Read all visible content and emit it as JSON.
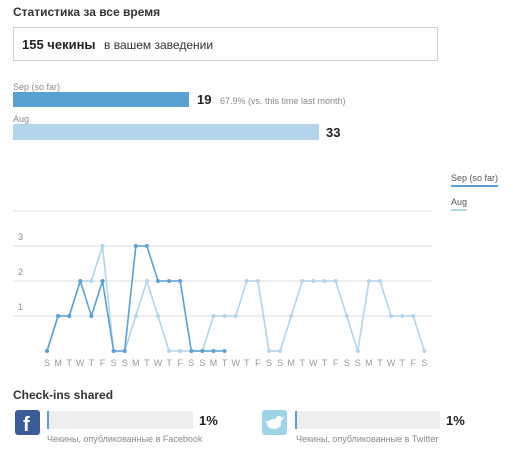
{
  "header": {
    "title": "Статистика за все время"
  },
  "total": {
    "count": "155 чекины",
    "suffix": "в вашем заведении"
  },
  "bars": [
    {
      "label": "Sep (so far)",
      "value": "19",
      "compare": "67.9% (vs. this time last month)",
      "color": "#5aa1d3"
    },
    {
      "label": "Aug",
      "value": "33",
      "compare": "",
      "color": "#b2d4ea"
    }
  ],
  "legend": {
    "sep": "Sep (so far)",
    "aug": "Aug"
  },
  "chart_data": {
    "type": "line",
    "ylim": [
      0,
      5
    ],
    "y_ticks": [
      "1",
      "2",
      "3",
      "5"
    ],
    "grid": true,
    "legend_position": "right",
    "x_labels": [
      "S",
      "M",
      "T",
      "W",
      "T",
      "F",
      "S",
      "S",
      "M",
      "T",
      "W",
      "T",
      "F",
      "S",
      "S",
      "M",
      "T",
      "W",
      "T",
      "F",
      "S",
      "S",
      "M",
      "T",
      "W",
      "T",
      "F",
      "S",
      "S",
      "M",
      "T",
      "W",
      "T",
      "F",
      "S"
    ],
    "series": [
      {
        "name": "Sep (so far)",
        "color": "#5aa1d3",
        "values": [
          0,
          1,
          1,
          2,
          1,
          2,
          0,
          0,
          3,
          3,
          2,
          2,
          2,
          0,
          0,
          0,
          0
        ]
      },
      {
        "name": "Aug",
        "color": "#b2d4ea",
        "values": [
          0,
          1,
          1,
          2,
          2,
          3,
          0,
          0,
          1,
          2,
          1,
          0,
          0,
          0,
          0,
          1,
          1,
          1,
          2,
          2,
          0,
          0,
          1,
          2,
          2,
          2,
          2,
          1,
          0,
          2,
          2,
          1,
          1,
          1,
          0
        ]
      }
    ]
  },
  "shared": {
    "title": "Check-ins shared",
    "facebook": {
      "percent": "1%",
      "caption": "Чекины, опубликованные в Facebook",
      "fraction": 0.01
    },
    "twitter": {
      "percent": "1%",
      "caption": "Чекины, опубликованные в Twitter",
      "fraction": 0.01
    }
  },
  "icons": {
    "facebook": "facebook-icon",
    "twitter": "twitter-bird-icon"
  }
}
